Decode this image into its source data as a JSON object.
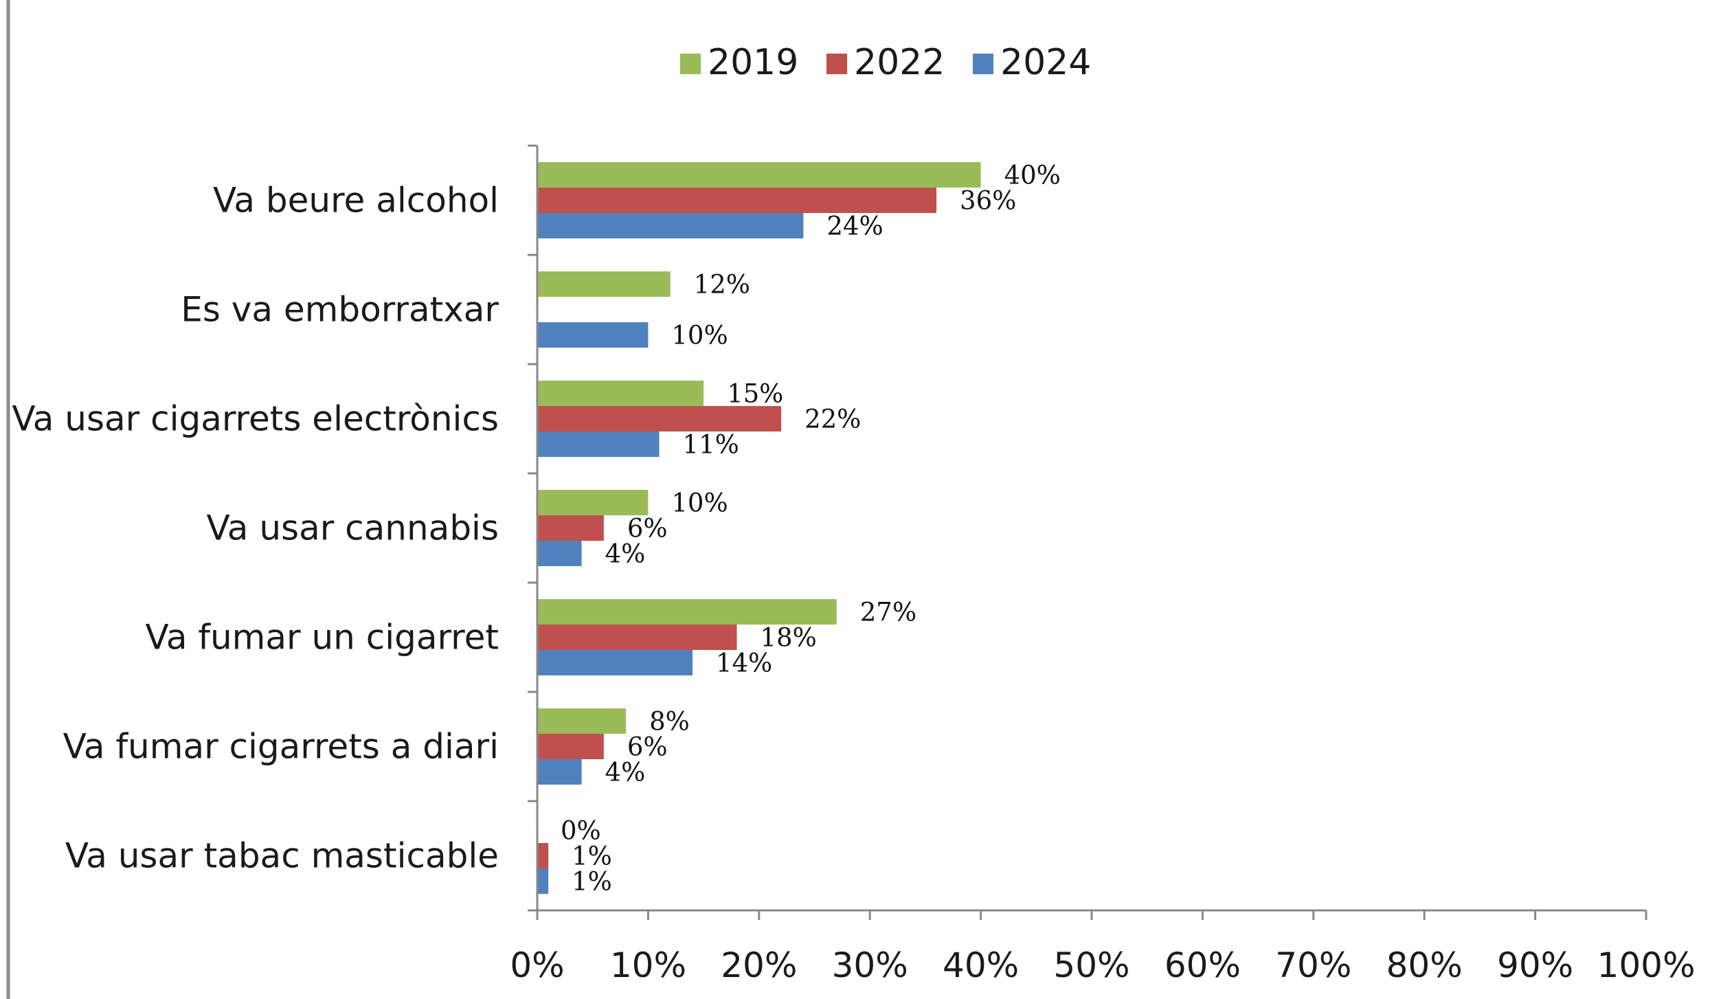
{
  "chart_data": {
    "type": "bar",
    "orientation": "horizontal",
    "categories": [
      "Va beure alcohol",
      "Es va emborratxar",
      "Va usar cigarrets electrònics",
      "Va usar cannabis",
      "Va fumar un cigarret",
      "Va fumar cigarrets a diari",
      "Va usar tabac masticable"
    ],
    "series": [
      {
        "name": "2019",
        "color": "#9bbb59",
        "values": [
          40,
          12,
          15,
          10,
          27,
          8,
          0
        ],
        "labels": [
          "40%",
          "12%",
          "15%",
          "10%",
          "27%",
          "8%",
          "0%"
        ]
      },
      {
        "name": "2022",
        "color": "#c0504d",
        "values": [
          36,
          null,
          22,
          6,
          18,
          6,
          1
        ],
        "labels": [
          "36%",
          "",
          "22%",
          "6%",
          "18%",
          "6%",
          "1%"
        ]
      },
      {
        "name": "2024",
        "color": "#4f81bd",
        "values": [
          24,
          10,
          11,
          4,
          14,
          4,
          1
        ],
        "labels": [
          "24%",
          "10%",
          "11%",
          "4%",
          "14%",
          "4%",
          "1%"
        ]
      }
    ],
    "xlim": [
      0,
      100
    ],
    "x_ticks": [
      "0%",
      "10%",
      "20%",
      "30%",
      "40%",
      "50%",
      "60%",
      "70%",
      "80%",
      "90%",
      "100%"
    ],
    "grid": false,
    "legend_position": "top"
  }
}
